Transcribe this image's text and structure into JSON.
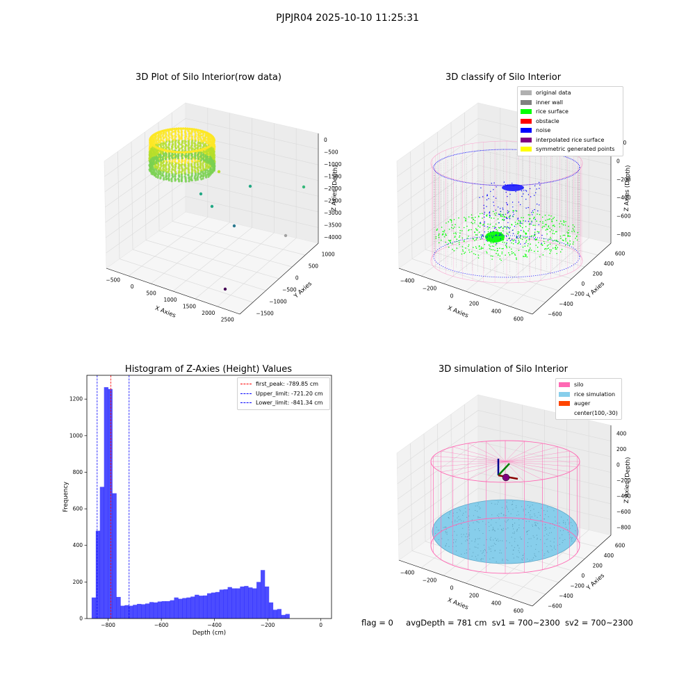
{
  "figure": {
    "suptitle": "PJPJR04 2025-10-10 11:25:31",
    "status": {
      "flag": "flag = 0",
      "avg_depth": "avgDepth = 781 cm",
      "sv1": "sv1 = 700~2300",
      "sv2": "sv2 = 700~2300"
    }
  },
  "chart_data": [
    {
      "type": "scatter3d",
      "title": "3D Plot of Silo Interior(row data)",
      "xlabel": "X Axies",
      "ylabel": "Y Axies",
      "zlabel": "Z Axies (Depth)",
      "x_ticks": [
        "−500",
        "0",
        "500",
        "1000",
        "1500",
        "2000",
        "2500"
      ],
      "y_ticks": [
        "−1500",
        "−1000",
        "−500",
        "0",
        "500",
        "1000"
      ],
      "z_ticks": [
        "0",
        "−500",
        "−1000",
        "−1500",
        "−2000",
        "−2500",
        "−3000",
        "−3500",
        "−4000"
      ],
      "colormap": [
        "#fde725",
        "#7ad151",
        "#22a884",
        "#2a788e",
        "#414487",
        "#440154"
      ]
    },
    {
      "type": "scatter3d",
      "title": "3D classify of Silo Interior",
      "xlabel": "X Axies",
      "ylabel": "Y Axies",
      "zlabel": "Z Axies (Depth)",
      "x_ticks": [
        "−400",
        "−200",
        "0",
        "200",
        "400",
        "600"
      ],
      "y_ticks": [
        "−600",
        "−400",
        "−200",
        "0",
        "200",
        "400",
        "600"
      ],
      "z_ticks": [
        "200",
        "0",
        "−200",
        "−400",
        "−600",
        "−800"
      ],
      "legend_position": "top-right",
      "legend": [
        {
          "label": "original data",
          "color": "#b0b0b0"
        },
        {
          "label": "inner wall",
          "color": "#808080"
        },
        {
          "label": "rice surface",
          "color": "#00ff00"
        },
        {
          "label": "obstacle",
          "color": "#ff0000"
        },
        {
          "label": "noise",
          "color": "#0000ff"
        },
        {
          "label": "interpolated rice surface",
          "color": "#800080"
        },
        {
          "label": "symmetric generated points",
          "color": "#ffff00"
        }
      ]
    },
    {
      "type": "bar",
      "title": "Histogram of Z-Axies (Height) Values",
      "xlabel": "Depth (cm)",
      "ylabel": "Frequency",
      "xlim": [
        -880,
        40
      ],
      "ylim": [
        0,
        1330
      ],
      "x_ticks": [
        {
          "value": -800,
          "label": "−800"
        },
        {
          "value": -600,
          "label": "−600"
        },
        {
          "value": -400,
          "label": "−400"
        },
        {
          "value": -200,
          "label": "−200"
        },
        {
          "value": 0,
          "label": "0"
        }
      ],
      "y_ticks": [
        0,
        200,
        400,
        600,
        800,
        1000,
        1200
      ],
      "bar_color": "#0000ff",
      "bin_start": -862,
      "bin_width": 15.5,
      "values": [
        115,
        480,
        720,
        1265,
        1255,
        685,
        118,
        70,
        73,
        70,
        75,
        80,
        78,
        82,
        90,
        88,
        93,
        95,
        95,
        100,
        115,
        108,
        112,
        115,
        120,
        130,
        125,
        126,
        138,
        142,
        145,
        158,
        160,
        172,
        165,
        165,
        175,
        178,
        170,
        165,
        200,
        265,
        175,
        88,
        48,
        52,
        20,
        25
      ],
      "vlines": [
        {
          "label": "first_peak: -789.85 cm",
          "x": -789.85,
          "color": "#ff0000"
        },
        {
          "label": "Upper_limit: -721.20 cm",
          "x": -721.2,
          "color": "#0000ff"
        },
        {
          "label": "Lower_limit: -841.34 cm",
          "x": -841.34,
          "color": "#0000ff"
        }
      ],
      "legend_position": "top-right"
    },
    {
      "type": "surface3d",
      "title": "3D simulation of Silo Interior",
      "xlabel": "X Axies",
      "ylabel": "Y Axies",
      "zlabel": "Z Axies (Depth)",
      "x_ticks": [
        "−400",
        "−200",
        "0",
        "200",
        "400",
        "600"
      ],
      "y_ticks": [
        "−600",
        "−400",
        "−200",
        "0",
        "200",
        "400",
        "600"
      ],
      "z_ticks": [
        "400",
        "200",
        "0",
        "−200",
        "−400",
        "−600",
        "−800"
      ],
      "legend_position": "top-right",
      "legend": [
        {
          "label": "silo",
          "color": "#ff69b4"
        },
        {
          "label": "rice simulation",
          "color": "#87ceeb"
        },
        {
          "label": "auger",
          "color": "#ff4500"
        },
        {
          "label": "center(100,-30)",
          "color": ""
        }
      ]
    }
  ]
}
